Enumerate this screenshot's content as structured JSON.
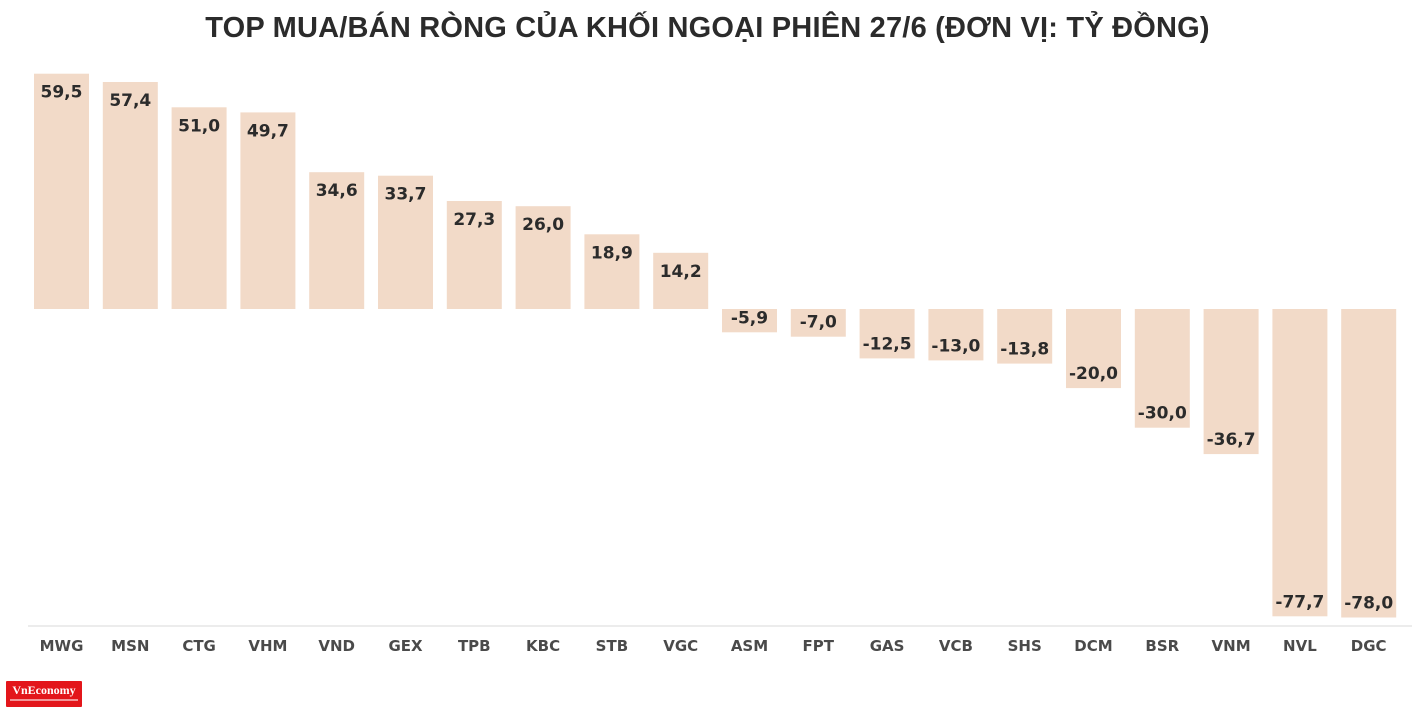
{
  "chart_data": {
    "type": "bar",
    "title": "TOP MUA/BÁN RÒNG CỦA KHỐI NGOẠI PHIÊN 27/6 (ĐƠN VỊ: TỶ ĐỒNG)",
    "xlabel": "",
    "ylabel": "",
    "categories": [
      "MWG",
      "MSN",
      "CTG",
      "VHM",
      "VND",
      "GEX",
      "TPB",
      "KBC",
      "STB",
      "VGC",
      "ASM",
      "FPT",
      "GAS",
      "VCB",
      "SHS",
      "DCM",
      "BSR",
      "VNM",
      "NVL",
      "DGC"
    ],
    "values": [
      59.5,
      57.4,
      51.0,
      49.7,
      34.6,
      33.7,
      27.3,
      26.0,
      18.9,
      14.2,
      -5.9,
      -7.0,
      -12.5,
      -13.0,
      -13.8,
      -20.0,
      -30.0,
      -36.7,
      -77.7,
      -78.0
    ],
    "labels": [
      "59,5",
      "57,4",
      "51,0",
      "49,7",
      "34,6",
      "33,7",
      "27,3",
      "26,0",
      "18,9",
      "14,2",
      "-5,9",
      "-7,0",
      "-12,5",
      "-13,0",
      "-13,8",
      "-20,0",
      "-30,0",
      "-36,7",
      "-77,7",
      "-78,0"
    ],
    "ylim": [
      -78,
      59.5
    ],
    "grid": false,
    "legend": "none",
    "bar_color": "#f2dac8",
    "text_color": "#2b2b2b"
  },
  "brand": {
    "name": "VnEconomy",
    "color": "#e3161b"
  }
}
